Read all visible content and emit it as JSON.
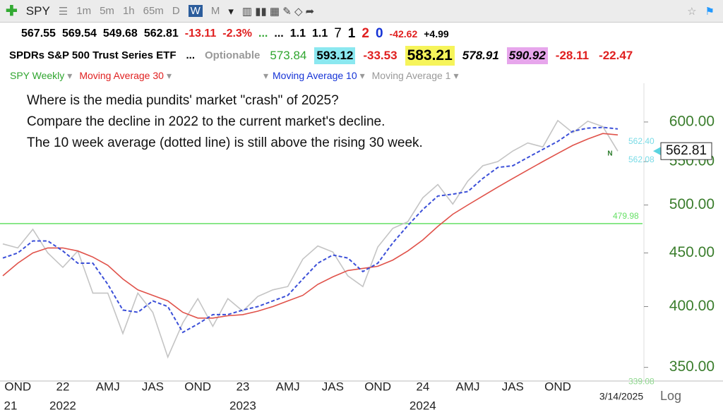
{
  "toolbar": {
    "symbol": "SPY",
    "intervals": [
      "1m",
      "5m",
      "1h",
      "65m",
      "D",
      "W",
      "M"
    ]
  },
  "quote": {
    "row1": [
      "567.55",
      "569.54",
      "549.68",
      "562.81",
      "-13.11",
      "-2.3%",
      "...",
      "...",
      "1.1",
      "1.1",
      "7",
      "1",
      "2",
      "0",
      "-42.62",
      "+4.99"
    ],
    "row2": [
      "SPDRs S&P 500 Trust Series ETF",
      "...",
      "Optionable",
      "573.84",
      "593.12",
      "-33.53",
      "583.21",
      "578.91",
      "590.92",
      "-28.11",
      "-22.47"
    ]
  },
  "chart_data": {
    "type": "line",
    "name": "SPY Weekly",
    "annotations": [
      "Where is the media pundits' market \"crash\" of 2025?",
      "Compare the decline in 2022 to the current market's decline.",
      "The 10 week average (dotted line) is still above the rising 30 week."
    ],
    "categories": [
      null,
      "OND",
      null,
      null,
      "22",
      null,
      null,
      "AMJ",
      null,
      null,
      "JAS",
      null,
      null,
      "OND",
      null,
      null,
      "23",
      null,
      null,
      "AMJ",
      null,
      null,
      "JAS",
      null,
      null,
      "OND",
      null,
      null,
      "24",
      null,
      null,
      "AMJ",
      null,
      null,
      "JAS",
      null,
      null,
      "OND",
      null,
      null,
      null,
      null
    ],
    "x_year_labels": [
      null,
      "21",
      null,
      null,
      "2022",
      null,
      null,
      null,
      null,
      null,
      null,
      null,
      null,
      null,
      null,
      null,
      "2023",
      null,
      null,
      null,
      null,
      null,
      null,
      null,
      null,
      null,
      null,
      null,
      "2024",
      null,
      null,
      null,
      null,
      null,
      null,
      null,
      null,
      null,
      null,
      null,
      null,
      null
    ],
    "log_scale": true,
    "scale_label": "Log",
    "date_label": "3/14/2025",
    "ylim": [
      336,
      677
    ],
    "yticks": [
      {
        "value": 350,
        "label": "350.00"
      },
      {
        "value": 400,
        "label": "400.00"
      },
      {
        "value": 450,
        "label": "450.00"
      },
      {
        "value": 500,
        "label": "500.00"
      },
      {
        "value": 550,
        "label": "550.00"
      },
      {
        "value": 600,
        "label": "600.00"
      }
    ],
    "series": [
      {
        "name": "Moving Average 30",
        "color": "#e0524a",
        "dashed": false,
        "values": [
          428,
          440,
          450,
          455,
          455,
          452,
          446,
          438,
          425,
          415,
          410,
          405,
          395,
          390,
          390,
          392,
          393,
          396,
          400,
          405,
          410,
          420,
          427,
          433,
          435,
          437,
          443,
          452,
          463,
          477,
          490,
          500,
          510,
          520,
          530,
          540,
          550,
          560,
          570,
          578,
          585,
          583.21
        ]
      },
      {
        "name": "Moving Average 10",
        "color": "#3b4fd8",
        "dashed": true,
        "values": [
          445,
          450,
          462,
          462,
          452,
          440,
          440,
          420,
          397,
          395,
          405,
          400,
          378,
          385,
          393,
          393,
          397,
          400,
          405,
          410,
          425,
          440,
          448,
          445,
          432,
          440,
          460,
          478,
          495,
          510,
          512,
          515,
          530,
          543,
          545,
          555,
          565,
          575,
          588,
          592,
          593,
          590.92
        ]
      },
      {
        "name": "Moving Average 1",
        "color": "#c4c4c4",
        "dashed": false,
        "values": [
          459,
          455,
          474,
          450,
          436,
          452,
          412,
          412,
          377,
          412,
          395,
          358,
          386,
          407,
          383,
          407,
          396,
          409,
          415,
          418,
          444,
          457,
          451,
          428,
          418,
          456,
          475,
          482,
          508,
          523,
          501,
          527,
          545,
          550,
          563,
          573,
          568,
          602,
          586,
          601,
          594,
          562.81
        ]
      }
    ],
    "price_lines": [
      {
        "value": 479.98,
        "label": "479.98",
        "color": "#66e066"
      }
    ],
    "side_labels": [
      {
        "value": 562.4,
        "label": "562.40",
        "color": "#79dbe6"
      },
      {
        "value": 562.08,
        "label": "562.08",
        "color": "#79dbe6"
      },
      {
        "value": 339.08,
        "label": "339.08",
        "color": "#8fd88f"
      }
    ],
    "last_price": 562.81,
    "marker_label": "N"
  }
}
